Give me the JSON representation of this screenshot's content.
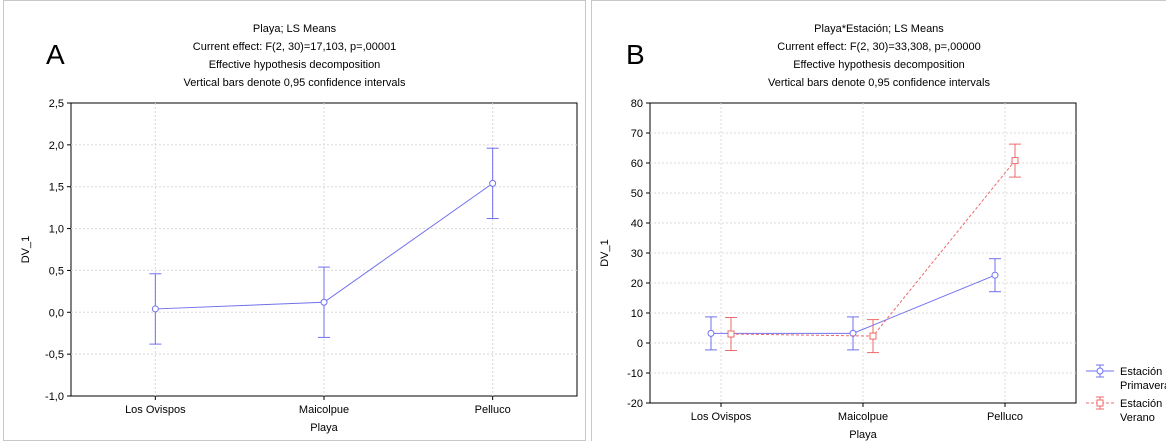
{
  "charts": [
    {
      "panel_letter": "A",
      "title_lines": [
        "Playa; LS Means",
        "Current effect: F(2, 30)=17,103, p=,00001",
        "Effective hypothesis decomposition",
        "Vertical bars denote 0,95 confidence intervals"
      ]
    },
    {
      "panel_letter": "B",
      "title_lines": [
        "Playa*Estación; LS Means",
        "Current effect: F(2, 30)=33,308, p=,00000",
        "Effective hypothesis decomposition",
        "Vertical bars denote 0,95 confidence intervals"
      ]
    }
  ],
  "chart_data": [
    {
      "type": "line",
      "title": "Playa; LS Means",
      "xlabel": "Playa",
      "ylabel": "DV_1",
      "categories": [
        "Los Ovispos",
        "Maicolpue",
        "Pelluco"
      ],
      "ylim": [
        -1.0,
        2.5
      ],
      "yticks": [
        -1.0,
        -0.5,
        0.0,
        0.5,
        1.0,
        1.5,
        2.0,
        2.5
      ],
      "ytick_labels": [
        "-1,0",
        "-0,5",
        "0,0",
        "0,5",
        "1,0",
        "1,5",
        "2,0",
        "2,5"
      ],
      "grid": true,
      "series": [
        {
          "color": "#7070ee",
          "marker": "circle",
          "dash": false,
          "values": [
            0.04,
            0.12,
            1.54
          ],
          "lower": [
            -0.38,
            -0.3,
            1.12
          ],
          "upper": [
            0.46,
            0.54,
            1.96
          ]
        }
      ]
    },
    {
      "type": "line",
      "title": "Playa*Estación; LS Means",
      "xlabel": "Playa",
      "ylabel": "DV_1",
      "categories": [
        "Los Ovispos",
        "Maicolpue",
        "Pelluco"
      ],
      "ylim": [
        -20,
        80
      ],
      "yticks": [
        -20,
        -10,
        0,
        10,
        20,
        30,
        40,
        50,
        60,
        70,
        80
      ],
      "ytick_labels": [
        "-20",
        "-10",
        "0",
        "10",
        "20",
        "30",
        "40",
        "50",
        "60",
        "70",
        "80"
      ],
      "grid": true,
      "legend_position": "bottom-right",
      "series": [
        {
          "name": "Estación Primavera",
          "legend_lines": [
            "Estación",
            "Primavera"
          ],
          "color": "#7070ee",
          "marker": "circle",
          "dash": false,
          "values": [
            3.2,
            3.2,
            22.6
          ],
          "lower": [
            -2.3,
            -2.3,
            17.1
          ],
          "upper": [
            8.7,
            8.7,
            28.1
          ]
        },
        {
          "name": "Estación Verano",
          "legend_lines": [
            "Estación",
            "Verano"
          ],
          "color": "#ee6a6a",
          "marker": "square",
          "dash": true,
          "values": [
            3.0,
            2.3,
            60.8
          ],
          "lower": [
            -2.5,
            -3.2,
            55.3
          ],
          "upper": [
            8.5,
            7.8,
            66.3
          ]
        }
      ]
    }
  ]
}
